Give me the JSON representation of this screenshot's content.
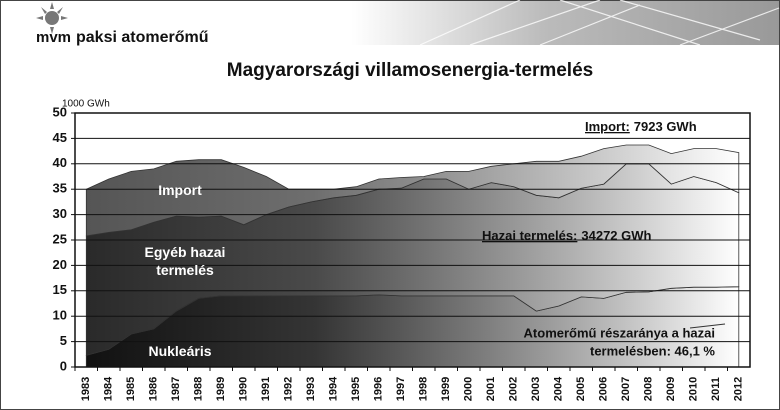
{
  "header": {
    "logo_prefix": "mvm",
    "logo_text": "paksi atomerőmű"
  },
  "chart_data": {
    "type": "stacked-area",
    "title": "Magyarországi  villamosenergia-termelés",
    "y_axis_label": "1000 GWh",
    "categories": [
      "1983",
      "1984",
      "1985",
      "1986",
      "1987",
      "1988",
      "1989",
      "1990",
      "1991",
      "1992",
      "1993",
      "1994",
      "1995",
      "1996",
      "1997",
      "1998",
      "1999",
      "2000",
      "2001",
      "2002",
      "2003",
      "2004",
      "2005",
      "2006",
      "2007",
      "2008",
      "2009",
      "2010",
      "2011",
      "2012"
    ],
    "series": [
      {
        "name": "Nukleáris",
        "color": "#111111",
        "values": [
          2.3,
          3.5,
          6.5,
          7.5,
          11,
          13.5,
          14,
          14,
          14,
          14,
          14,
          14,
          14,
          14.2,
          14,
          14,
          14,
          14,
          14,
          14,
          11,
          12,
          13.8,
          13.5,
          14.7,
          14.8,
          15.5,
          15.7,
          15.7,
          15.8
        ]
      },
      {
        "name": "Egyéb hazai termelés",
        "color": "#2a2a2a",
        "values": [
          23.5,
          23,
          20.5,
          21,
          18.7,
          16,
          15.7,
          14,
          16,
          17.5,
          18.5,
          19.3,
          19.8,
          20.8,
          21.2,
          23,
          23,
          21,
          22.3,
          21.5,
          22.8,
          21.3,
          21.4,
          22.5,
          25.3,
          25.2,
          20.5,
          21.8,
          20.6,
          18.5
        ]
      },
      {
        "name": "Import",
        "color": "#555555",
        "values": [
          9.2,
          10.5,
          11.5,
          10.5,
          10.8,
          11.3,
          11.1,
          11.3,
          7.5,
          3.5,
          2.5,
          1.7,
          1.7,
          2,
          2.1,
          0.5,
          1.5,
          3.5,
          3.2,
          4.5,
          6.7,
          7.2,
          6.3,
          7,
          3.7,
          3.7,
          6,
          5.5,
          6.7,
          7.9
        ]
      }
    ],
    "ylim": [
      0,
      50
    ],
    "yticks": [
      0,
      5,
      10,
      15,
      20,
      25,
      30,
      35,
      40,
      45,
      50
    ],
    "grid": true,
    "annotations": [
      {
        "label": "Import:",
        "text": "7923  GWh"
      },
      {
        "label": "Hazai termelés:",
        "text": "34272 GWh"
      },
      {
        "lines": [
          "Atomerőmű részaránya a hazai",
          "termelésben: 46,1 %"
        ]
      }
    ]
  }
}
